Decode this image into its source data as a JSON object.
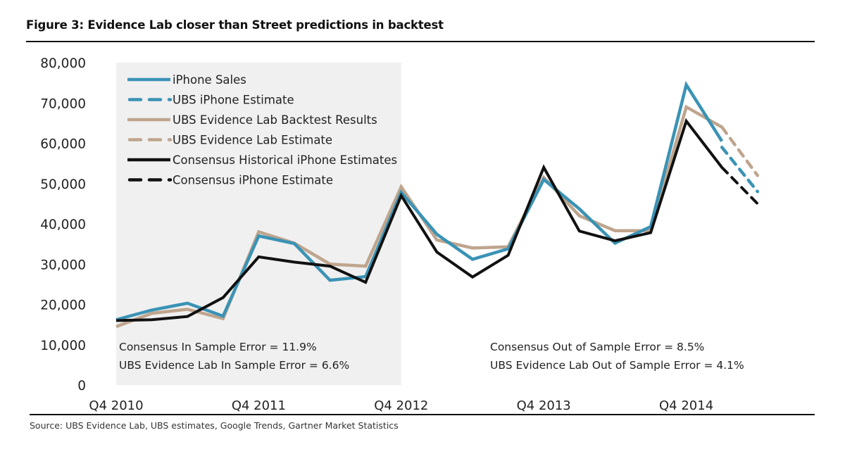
{
  "figure": {
    "title": "Figure 3: Evidence Lab closer than Street predictions in backtest",
    "source": "Source: UBS Evidence Lab, UBS estimates, Google Trends, Gartner Market Statistics"
  },
  "annotations": {
    "in_sample": [
      "Consensus In Sample Error = 11.9%",
      "UBS Evidence Lab In Sample Error = 6.6%"
    ],
    "out_of_sample": [
      "Consensus Out of Sample Error = 8.5%",
      "UBS Evidence Lab Out of Sample Error = 4.1%"
    ]
  },
  "colors": {
    "blue": "#3a93b5",
    "tan": "#bfa58e",
    "black": "#111111",
    "shade": "#f0f0f0"
  },
  "chart_data": {
    "type": "line",
    "title": "Figure 3: Evidence Lab closer than Street predictions in backtest",
    "xlabel": "",
    "ylabel": "",
    "ylim": [
      0,
      80000
    ],
    "yticks": [
      0,
      10000,
      20000,
      30000,
      40000,
      50000,
      60000,
      70000,
      80000
    ],
    "ytick_labels": [
      "0",
      "10,000",
      "20,000",
      "30,000",
      "40,000",
      "50,000",
      "60,000",
      "70,000",
      "80,000"
    ],
    "x": [
      "Q4 2010",
      "Q1 2011",
      "Q2 2011",
      "Q3 2011",
      "Q4 2011",
      "Q1 2012",
      "Q2 2012",
      "Q3 2012",
      "Q4 2012",
      "Q1 2013",
      "Q2 2013",
      "Q3 2013",
      "Q4 2013",
      "Q1 2014",
      "Q2 2014",
      "Q3 2014",
      "Q4 2014",
      "Q1 2015",
      "Q2 2015"
    ],
    "xtick_labels": [
      "Q4 2010",
      "Q4 2011",
      "Q4 2012",
      "Q4 2013",
      "Q4 2014"
    ],
    "xtick_indices": [
      0,
      4,
      8,
      12,
      16
    ],
    "in_sample_shaded_range": [
      "Q4 2010",
      "Q4 2012"
    ],
    "grid": false,
    "legend_position": "top-left",
    "series": [
      {
        "name": "iPhone Sales",
        "color_key": "blue",
        "dashed": false,
        "start_index": 0,
        "values": [
          16200,
          18600,
          20300,
          17100,
          37000,
          35100,
          26000,
          26900,
          47800,
          37400,
          31200,
          33800,
          51000,
          43700,
          35200,
          39300,
          74500,
          60500
        ]
      },
      {
        "name": "UBS iPhone Estimate",
        "color_key": "blue",
        "dashed": true,
        "start_index": 17,
        "values": [
          59000,
          48000
        ]
      },
      {
        "name": "UBS Evidence Lab Backtest Results",
        "color_key": "tan",
        "dashed": false,
        "start_index": 0,
        "values": [
          14500,
          17800,
          18800,
          16500,
          38000,
          35200,
          30000,
          29500,
          49200,
          36000,
          34000,
          34300,
          51500,
          42000,
          38300,
          38300,
          69000,
          64000
        ]
      },
      {
        "name": "UBS Evidence Lab Estimate",
        "color_key": "tan",
        "dashed": true,
        "start_index": 17,
        "values": [
          64000,
          52000
        ]
      },
      {
        "name": "Consensus Historical iPhone Estimates",
        "color_key": "black",
        "dashed": false,
        "start_index": 0,
        "values": [
          16000,
          16200,
          17000,
          21700,
          31800,
          30500,
          29500,
          25500,
          47000,
          33000,
          26800,
          32200,
          54000,
          38200,
          35800,
          37800,
          65500,
          54000
        ]
      },
      {
        "name": "Consensus iPhone Estimate",
        "color_key": "black",
        "dashed": true,
        "start_index": 17,
        "values": [
          54000,
          45000
        ]
      }
    ]
  }
}
